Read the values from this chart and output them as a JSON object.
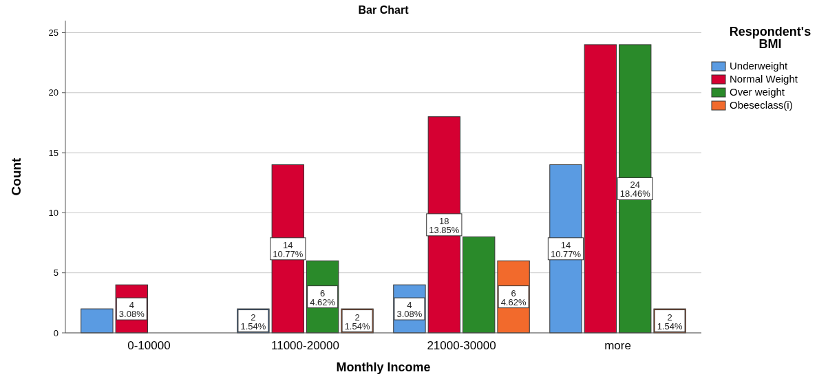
{
  "chart_data": {
    "type": "bar",
    "title": "Bar Chart",
    "xlabel": "Monthly Income",
    "ylabel": "Count",
    "legend_title": "Respondent's BMI",
    "categories": [
      "0-10000",
      "11000-20000",
      "21000-30000",
      "more"
    ],
    "series": [
      {
        "name": "Underweight",
        "color": "#5a9be2",
        "values": [
          2,
          2,
          4,
          14
        ],
        "value_labels": [
          null,
          "2\n1.54%",
          "4\n3.08%",
          "14\n10.77%"
        ]
      },
      {
        "name": "Normal Weight",
        "color": "#d50032",
        "values": [
          4,
          14,
          18,
          24
        ],
        "value_labels": [
          "4\n3.08%",
          "14\n10.77%",
          "18\n13.85%",
          null
        ]
      },
      {
        "name": "Over weight",
        "color": "#2a8a2a",
        "values": [
          null,
          6,
          8,
          24
        ],
        "value_labels": [
          null,
          "6\n4.62%",
          null,
          "24\n18.46%"
        ]
      },
      {
        "name": "Obeseclass(i)",
        "color": "#f26a2c",
        "values": [
          null,
          2,
          6,
          2
        ],
        "value_labels": [
          null,
          "2\n1.54%",
          "6\n4.62%",
          "2\n1.54%"
        ]
      }
    ],
    "ylim": [
      0,
      26
    ],
    "yticks": [
      0,
      5,
      10,
      15,
      20,
      25
    ],
    "grid": "y",
    "legend": "right"
  }
}
